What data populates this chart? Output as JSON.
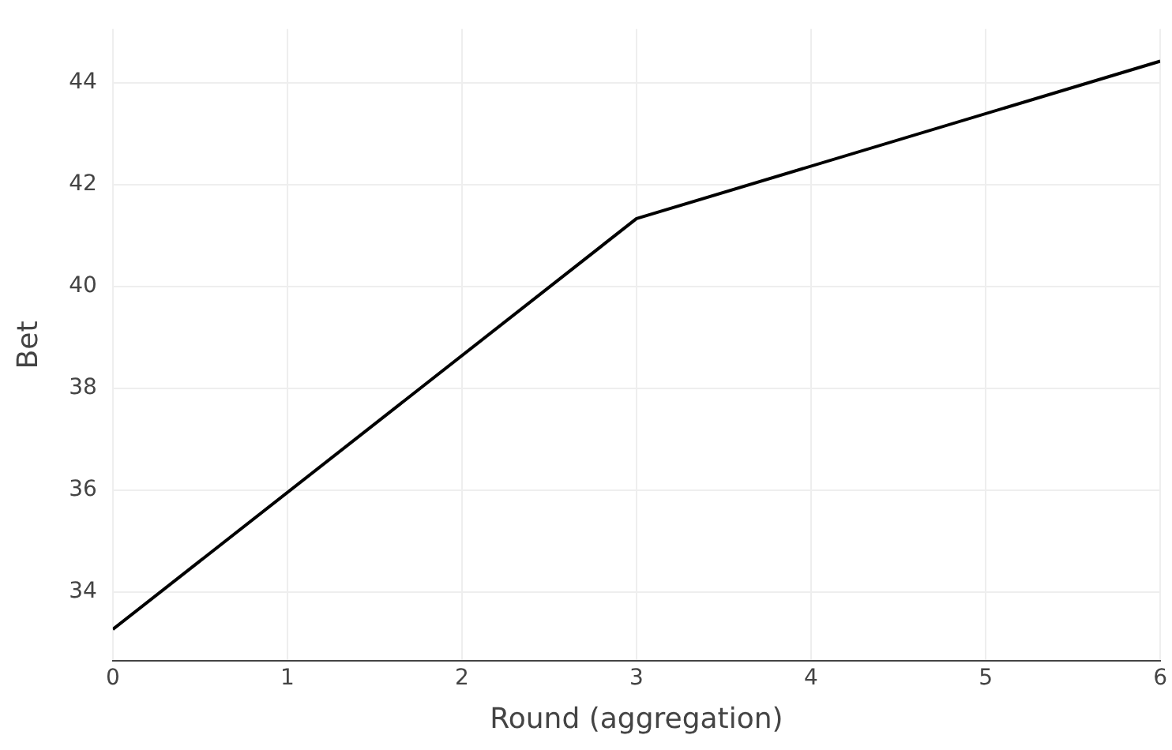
{
  "chart_data": {
    "type": "line",
    "xlabel": "Round (aggregation)",
    "ylabel": "Bet",
    "x": [
      0,
      3,
      6
    ],
    "series": [
      {
        "color": "#000000",
        "values": [
          33.27,
          41.33,
          44.42
        ]
      }
    ],
    "xlim": [
      0,
      6
    ],
    "xticks": [
      0,
      1,
      2,
      3,
      4,
      5,
      6
    ],
    "ylim": [
      32.65,
      45.05
    ],
    "yticks": [
      34,
      36,
      38,
      40,
      42,
      44
    ],
    "grid": true,
    "legend": false,
    "marker": "none",
    "line_style": "solid"
  }
}
